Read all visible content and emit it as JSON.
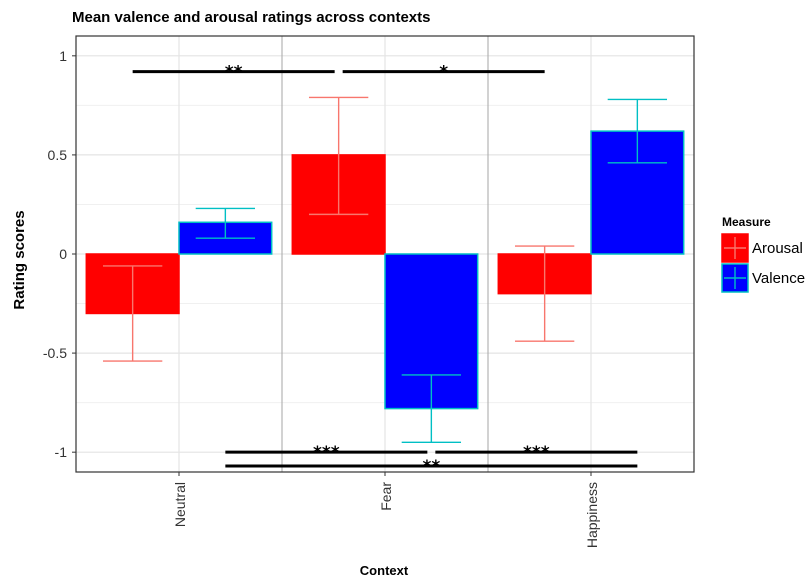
{
  "chart_data": {
    "type": "bar",
    "title": "Mean valence and arousal ratings across contexts",
    "xlabel": "Context",
    "ylabel": "Rating scores",
    "categories": [
      "Neutral",
      "Fear",
      "Happiness"
    ],
    "ylim": [
      -1.1,
      1.1
    ],
    "yticks": [
      1,
      0.5,
      0,
      -0.5,
      -1
    ],
    "ytick_labels": [
      "1",
      "0.5",
      "0",
      "-0.5",
      "-1"
    ],
    "grid": true,
    "legend": {
      "title": "Measure",
      "position": "right"
    },
    "series": [
      {
        "name": "Arousal",
        "fill": "#ff0000",
        "border": "#ff0000",
        "errcolor": "#f8766d",
        "values": [
          -0.3,
          0.5,
          -0.2
        ],
        "err_low": [
          -0.54,
          0.2,
          -0.44
        ],
        "err_high": [
          -0.06,
          0.79,
          0.04
        ]
      },
      {
        "name": "Valence",
        "fill": "#0000ff",
        "border": "#00bfc4",
        "errcolor": "#00bfc4",
        "values": [
          0.16,
          -0.78,
          0.62
        ],
        "err_low": [
          0.08,
          -0.95,
          0.46
        ],
        "err_high": [
          0.23,
          -0.61,
          0.78
        ]
      }
    ],
    "significance": [
      {
        "label": "**",
        "from": "Neutral:Arousal",
        "to": "Fear:Arousal",
        "y": 0.92
      },
      {
        "label": "*",
        "from": "Fear:Arousal",
        "to": "Happiness:Arousal",
        "y": 0.92
      },
      {
        "label": "***",
        "from": "Neutral:Valence",
        "to": "Fear:Valence",
        "y": -1.0
      },
      {
        "label": "***",
        "from": "Fear:Valence",
        "to": "Happiness:Valence",
        "y": -1.0
      },
      {
        "label": "**",
        "from": "Neutral:Valence",
        "to": "Happiness:Valence",
        "y": -1.07
      }
    ]
  }
}
